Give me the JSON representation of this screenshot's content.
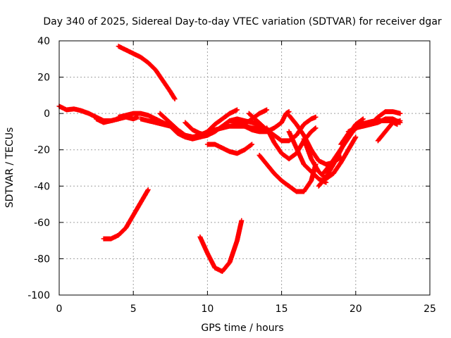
{
  "chart_data": {
    "type": "scatter",
    "title": "Day 340 of 2025, Sidereal Day-to-day VTEC variation (SDTVAR) for receiver dgar",
    "xlabel": "GPS time / hours",
    "ylabel": "SDTVAR / TECUs",
    "xlim": [
      0,
      25
    ],
    "ylim": [
      -100,
      40
    ],
    "xticks": [
      0,
      5,
      10,
      15,
      20,
      25
    ],
    "yticks": [
      -100,
      -80,
      -60,
      -40,
      -20,
      0,
      20,
      40
    ],
    "grid": true,
    "marker": "+",
    "color": "#ff0000",
    "series": [
      {
        "name": "track-1",
        "points": [
          [
            0,
            4
          ],
          [
            0.5,
            2
          ],
          [
            1,
            2.5
          ],
          [
            1.5,
            1.5
          ],
          [
            2,
            0
          ],
          [
            2.5,
            -2
          ],
          [
            3,
            -4
          ],
          [
            3.5,
            -4
          ],
          [
            4,
            -3
          ]
        ]
      },
      {
        "name": "track-2",
        "points": [
          [
            2.5,
            -3
          ],
          [
            3,
            -5
          ],
          [
            3.5,
            -4
          ],
          [
            4,
            -3
          ],
          [
            4.5,
            -2
          ],
          [
            5,
            -3
          ],
          [
            5.3,
            -2
          ]
        ]
      },
      {
        "name": "track-3",
        "points": [
          [
            4,
            -2
          ],
          [
            4.5,
            -1
          ],
          [
            5,
            0
          ],
          [
            5.5,
            0
          ],
          [
            6,
            -1
          ],
          [
            6.5,
            -3
          ],
          [
            7,
            -5
          ],
          [
            7.5,
            -7
          ],
          [
            8,
            -11
          ],
          [
            8.5,
            -13
          ],
          [
            9,
            -14
          ],
          [
            9.5,
            -13
          ],
          [
            10,
            -11
          ],
          [
            10.5,
            -9
          ],
          [
            11,
            -8
          ],
          [
            11.5,
            -7
          ],
          [
            12,
            -7
          ],
          [
            12.5,
            -7
          ],
          [
            13,
            -8
          ],
          [
            13.5,
            -8
          ],
          [
            14,
            -9
          ]
        ]
      },
      {
        "name": "track-4",
        "points": [
          [
            4,
            37
          ],
          [
            4.5,
            35
          ],
          [
            5,
            33
          ],
          [
            5.5,
            31
          ],
          [
            6,
            28
          ],
          [
            6.5,
            24
          ],
          [
            7,
            18
          ],
          [
            7.5,
            12
          ],
          [
            7.8,
            8
          ]
        ]
      },
      {
        "name": "track-5",
        "points": [
          [
            6.8,
            0
          ],
          [
            7.2,
            -3
          ],
          [
            7.6,
            -6
          ],
          [
            8,
            -9
          ],
          [
            8.5,
            -12
          ],
          [
            9,
            -13
          ],
          [
            9.5,
            -12
          ],
          [
            10,
            -10
          ],
          [
            10.5,
            -6
          ],
          [
            11,
            -3
          ],
          [
            11.5,
            0
          ],
          [
            12,
            2
          ]
        ]
      },
      {
        "name": "track-6",
        "points": [
          [
            5.5,
            -3
          ],
          [
            6,
            -4
          ],
          [
            6.5,
            -5
          ],
          [
            7,
            -6
          ],
          [
            7.5,
            -7
          ],
          [
            8,
            -10
          ],
          [
            8.5,
            -12
          ],
          [
            9,
            -13
          ],
          [
            9.5,
            -13
          ],
          [
            10,
            -12
          ]
        ]
      },
      {
        "name": "track-7",
        "points": [
          [
            8.5,
            -5
          ],
          [
            9,
            -9
          ],
          [
            9.5,
            -11
          ],
          [
            10,
            -12
          ],
          [
            10.5,
            -10
          ],
          [
            11,
            -7
          ],
          [
            11.5,
            -4
          ],
          [
            12,
            -3
          ],
          [
            12.5,
            -4
          ],
          [
            13,
            -5
          ],
          [
            13.5,
            -6
          ]
        ]
      },
      {
        "name": "track-8",
        "points": [
          [
            10,
            -17
          ],
          [
            10.5,
            -17
          ],
          [
            11,
            -19
          ],
          [
            11.5,
            -21
          ],
          [
            12,
            -22
          ],
          [
            12.5,
            -20
          ],
          [
            13,
            -17
          ]
        ]
      },
      {
        "name": "track-9",
        "points": [
          [
            11.5,
            -4
          ],
          [
            12,
            -5
          ],
          [
            12.5,
            -6
          ],
          [
            13,
            -3
          ],
          [
            13.5,
            0
          ],
          [
            14,
            2
          ]
        ]
      },
      {
        "name": "track-10",
        "points": [
          [
            12.5,
            -7
          ],
          [
            13,
            -9
          ],
          [
            13.5,
            -10
          ],
          [
            14,
            -10
          ],
          [
            14.5,
            -8
          ],
          [
            15,
            -5
          ],
          [
            15.3,
            0
          ],
          [
            15.5,
            1
          ]
        ]
      },
      {
        "name": "track-11",
        "points": [
          [
            12.8,
            0
          ],
          [
            13.2,
            -3
          ],
          [
            13.6,
            -6
          ],
          [
            14,
            -9
          ],
          [
            14.5,
            -12
          ],
          [
            15,
            -15
          ],
          [
            15.5,
            -15
          ],
          [
            16,
            -12
          ],
          [
            16.5,
            -6
          ],
          [
            17,
            -3
          ],
          [
            17.3,
            -2
          ]
        ]
      },
      {
        "name": "track-12",
        "points": [
          [
            14,
            -8
          ],
          [
            14.5,
            -16
          ],
          [
            15,
            -22
          ],
          [
            15.5,
            -25
          ],
          [
            16,
            -22
          ],
          [
            16.5,
            -15
          ],
          [
            17,
            -10
          ],
          [
            17.3,
            -8
          ]
        ]
      },
      {
        "name": "track-13",
        "points": [
          [
            13.5,
            -23
          ],
          [
            14,
            -28
          ],
          [
            14.5,
            -33
          ],
          [
            15,
            -37
          ],
          [
            15.5,
            -40
          ],
          [
            16,
            -43
          ],
          [
            16.5,
            -43
          ],
          [
            17,
            -37
          ],
          [
            17.3,
            -28
          ]
        ]
      },
      {
        "name": "track-14",
        "points": [
          [
            15.5,
            -1
          ],
          [
            16,
            -6
          ],
          [
            16.5,
            -12
          ],
          [
            17,
            -20
          ],
          [
            17.5,
            -26
          ],
          [
            18,
            -28
          ],
          [
            18.5,
            -27
          ],
          [
            19,
            -24
          ]
        ]
      },
      {
        "name": "track-15",
        "points": [
          [
            16.5,
            -14
          ],
          [
            17,
            -25
          ],
          [
            17.5,
            -32
          ],
          [
            18,
            -36
          ],
          [
            18.5,
            -33
          ],
          [
            19,
            -27
          ],
          [
            19.5,
            -20
          ],
          [
            20,
            -13
          ]
        ]
      },
      {
        "name": "track-16",
        "points": [
          [
            15.5,
            -10
          ],
          [
            16,
            -19
          ],
          [
            16.5,
            -28
          ],
          [
            17,
            -32
          ],
          [
            17.5,
            -36
          ],
          [
            18,
            -38
          ]
        ]
      },
      {
        "name": "track-17",
        "points": [
          [
            17.5,
            -40
          ],
          [
            18,
            -35
          ],
          [
            18.5,
            -28
          ],
          [
            19,
            -20
          ],
          [
            19.5,
            -12
          ],
          [
            20,
            -6
          ],
          [
            20.5,
            -3
          ]
        ]
      },
      {
        "name": "track-18",
        "points": [
          [
            17.8,
            -33
          ],
          [
            18.3,
            -28
          ],
          [
            18.8,
            -22
          ],
          [
            19.3,
            -16
          ],
          [
            19.8,
            -10
          ],
          [
            20.3,
            -6
          ],
          [
            20.8,
            -5
          ],
          [
            21.3,
            -4
          ],
          [
            21.8,
            -4
          ],
          [
            22.3,
            -4
          ],
          [
            22.8,
            -6
          ]
        ]
      },
      {
        "name": "track-19",
        "points": [
          [
            19.5,
            -10
          ],
          [
            20,
            -8
          ],
          [
            20.5,
            -7
          ],
          [
            21,
            -6
          ],
          [
            21.5,
            -2
          ],
          [
            22,
            1
          ],
          [
            22.5,
            1
          ],
          [
            23,
            0
          ]
        ]
      },
      {
        "name": "track-20",
        "points": [
          [
            19,
            -17
          ],
          [
            19.5,
            -11
          ],
          [
            20,
            -7
          ],
          [
            20.5,
            -6
          ],
          [
            21,
            -6
          ],
          [
            21.5,
            -5
          ],
          [
            22,
            -3
          ],
          [
            22.5,
            -3
          ],
          [
            23,
            -5
          ]
        ]
      },
      {
        "name": "track-21",
        "points": [
          [
            21.5,
            -15
          ],
          [
            22,
            -10
          ],
          [
            22.5,
            -5
          ],
          [
            23,
            -4
          ]
        ]
      },
      {
        "name": "track-22",
        "points": [
          [
            3,
            -69
          ],
          [
            3.5,
            -69
          ],
          [
            4,
            -67
          ],
          [
            4.5,
            -63
          ],
          [
            5,
            -56
          ],
          [
            5.5,
            -49
          ],
          [
            6,
            -42
          ]
        ]
      },
      {
        "name": "track-23",
        "points": [
          [
            9.5,
            -68
          ],
          [
            10,
            -77
          ],
          [
            10.5,
            -85
          ],
          [
            11,
            -87
          ],
          [
            11.5,
            -82
          ],
          [
            12,
            -70
          ],
          [
            12.3,
            -59
          ]
        ]
      }
    ]
  }
}
